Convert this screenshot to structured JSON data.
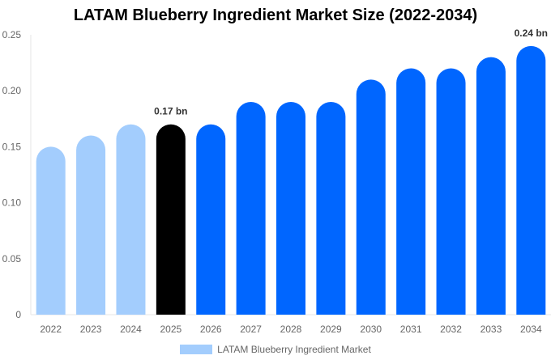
{
  "chart_data": {
    "type": "bar",
    "title": "LATAM Blueberry Ingredient Market Size (2022-2034)",
    "categories": [
      "2022",
      "2023",
      "2024",
      "2025",
      "2026",
      "2027",
      "2028",
      "2029",
      "2030",
      "2031",
      "2032",
      "2033",
      "2034"
    ],
    "series": [
      {
        "name": "LATAM Blueberry Ingredient Market",
        "values": [
          0.15,
          0.16,
          0.17,
          0.17,
          0.17,
          0.19,
          0.19,
          0.19,
          0.21,
          0.22,
          0.22,
          0.23,
          0.24
        ]
      }
    ],
    "ylim": [
      0,
      0.25
    ],
    "yticks": [
      "0",
      "0.05",
      "0.10",
      "0.15",
      "0.20",
      "0.25"
    ],
    "data_labels": {
      "2025": "0.17 bn",
      "2034": "0.24 bn"
    },
    "bar_colors": {
      "historical": "#a3cdfd",
      "base_year": "#000000",
      "forecast": "#0066ff"
    },
    "legend_color": "#a3cdfd",
    "legend_position": "bottom",
    "grid": false
  }
}
